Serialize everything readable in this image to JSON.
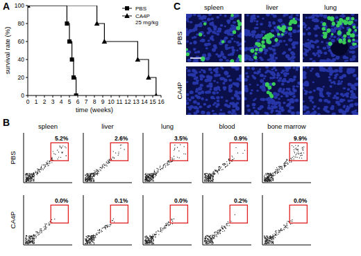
{
  "figure": {
    "panel_labels": [
      "A",
      "B",
      "C"
    ]
  },
  "chart_data": {
    "type": "line",
    "line_style": "step",
    "x_label": "time (weeks)",
    "y_label": "survival rate (%)",
    "xlim": [
      0,
      16
    ],
    "xticks": [
      0,
      1,
      2,
      3,
      4,
      5,
      6,
      7,
      8,
      9,
      10,
      11,
      12,
      13,
      14,
      15,
      16
    ],
    "ylim": [
      0,
      100
    ],
    "yticks": [
      0,
      20,
      40,
      60,
      80,
      100
    ],
    "grid": false,
    "legend": "top-right",
    "series": [
      {
        "name": "PBS",
        "color": "#000000",
        "marker": "square",
        "x": [
          0,
          4.7,
          5.0,
          5.3,
          5.5,
          5.8
        ],
        "values": [
          100,
          80,
          60,
          40,
          20,
          0
        ]
      },
      {
        "name": "CA4P 25 mg/kg",
        "color": "#000000",
        "marker": "triangle",
        "x": [
          0,
          8.3,
          9.2,
          13.2,
          14.5,
          15.4
        ],
        "values": [
          100,
          80,
          60,
          40,
          20,
          0
        ]
      }
    ]
  },
  "flow": {
    "columns": [
      "spleen",
      "liver",
      "lung",
      "blood",
      "bone marrow"
    ],
    "rows": [
      {
        "label": "PBS",
        "gates": [
          {
            "value": 5.2,
            "label": "5.2%"
          },
          {
            "value": 2.6,
            "label": "2.6%"
          },
          {
            "value": 3.5,
            "label": "3.5%"
          },
          {
            "value": 0.9,
            "label": "0.9%"
          },
          {
            "value": 9.9,
            "label": "9.9%"
          }
        ]
      },
      {
        "label": "CA4P",
        "gates": [
          {
            "value": 0.0,
            "label": "0.0%"
          },
          {
            "value": 0.1,
            "label": "0.1%"
          },
          {
            "value": 0.0,
            "label": "0.0%"
          },
          {
            "value": 0.2,
            "label": "0.2%"
          },
          {
            "value": 0.0,
            "label": "0.0%"
          }
        ]
      }
    ]
  },
  "micro": {
    "columns": [
      "spleen",
      "liver",
      "lung"
    ],
    "rows": [
      "PBS",
      "CA4P"
    ]
  }
}
